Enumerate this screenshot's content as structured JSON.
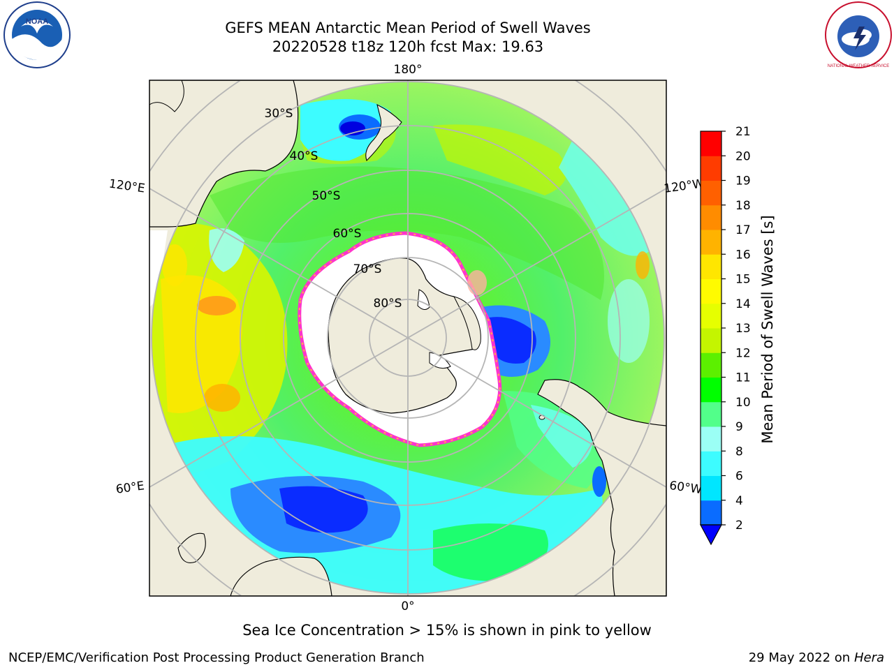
{
  "header": {
    "title": "GEFS MEAN Antarctic Mean Period of Swell Waves",
    "subtitle": "20220528 t18z 120h fcst   Max: 19.63"
  },
  "logos": {
    "left": {
      "icon": "noaa-logo",
      "text": "NOAA"
    },
    "right": {
      "icon": "nws-logo",
      "text": "NATIONAL WEATHER SERVICE"
    }
  },
  "map": {
    "projection": "south-polar-stereographic",
    "meridian_labels": {
      "top": "180°",
      "bottom": "0°",
      "upper_left": "120°E",
      "upper_right": "120°W",
      "lower_left": "60°E",
      "lower_right": "60°W"
    },
    "parallel_labels": [
      "30°S",
      "40°S",
      "50°S",
      "60°S",
      "70°S",
      "80°S"
    ],
    "colors": {
      "land": "#efecdc",
      "ice_pack": "#ffffff",
      "ice_edge": "#ff33cc",
      "ice_inner": "#ffb347",
      "grid": "#b5b5b5",
      "coast": "#000000"
    }
  },
  "colorbar": {
    "label": "Mean Period of Swell Waves [s]",
    "ticks": [
      "2",
      "4",
      "6",
      "8",
      "9",
      "10",
      "11",
      "12",
      "13",
      "14",
      "15",
      "16",
      "17",
      "18",
      "19",
      "20",
      "21"
    ],
    "colors": [
      "#0a6cff",
      "#00e6ff",
      "#3dfcff",
      "#9bfff5",
      "#52ff8a",
      "#00ff00",
      "#5cf000",
      "#c4f500",
      "#e6ff00",
      "#fffb00",
      "#ffe600",
      "#ffb300",
      "#ff8c00",
      "#ff6000",
      "#ff3c00",
      "#ff0000"
    ],
    "under_color": "#0000ff"
  },
  "footer": {
    "ice_note": "Sea Ice Concentration > 15% is shown in pink to yellow",
    "credit": "NCEP/EMC/Verification Post Processing Product Generation Branch",
    "date": "29 May 2022 on",
    "host": "Hera"
  }
}
